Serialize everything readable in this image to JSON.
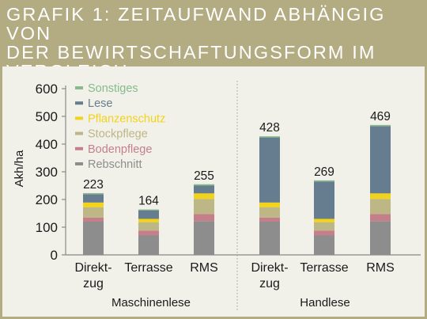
{
  "header": {
    "title_line1": "GRAFIK 1: ZEITAUFWAND ABHÄNGIG VON",
    "title_line2": "DER BEWIRTSCHAFTUNGSFORM IM",
    "title_line3": "VERGLEICH"
  },
  "colors": {
    "header_bg": "#b3ab82",
    "plot_bg": "#f1f1ea",
    "Rebschnitt": "#8d8d8d",
    "Bodenpflege": "#c57f8b",
    "Stockpflege": "#bdb685",
    "Pflanzenschutz": "#f3d21a",
    "Lese": "#667d8f",
    "Sonstiges": "#86bb8c"
  },
  "chart_data": {
    "type": "bar",
    "stacked": true,
    "title": "GRAFIK 1: ZEITAUFWAND ABHÄNGIG VON DER BEWIRTSCHAFTUNGSFORM IM VERGLEICH",
    "ylabel": "Akh/ha",
    "xlabel": "",
    "ylim": [
      0,
      600
    ],
    "yticks": [
      0,
      100,
      200,
      300,
      400,
      500,
      600
    ],
    "grid": false,
    "legend_position": "top-left",
    "groups": [
      {
        "label": "Maschinenlese",
        "categories": [
          [
            "Direkt-",
            "zug"
          ],
          [
            "Terrasse"
          ],
          [
            "RMS"
          ]
        ]
      },
      {
        "label": "Handlese",
        "categories": [
          [
            "Direkt-",
            "zug"
          ],
          [
            "Terrasse"
          ],
          [
            "RMS"
          ]
        ]
      }
    ],
    "totals": [
      223,
      164,
      255,
      428,
      269,
      469
    ],
    "series": [
      {
        "name": "Rebschnitt",
        "values": [
          120,
          70,
          122,
          120,
          70,
          122
        ]
      },
      {
        "name": "Bodenpflege",
        "values": [
          15,
          18,
          25,
          15,
          18,
          25
        ]
      },
      {
        "name": "Stockpflege",
        "values": [
          37,
          30,
          55,
          37,
          30,
          55
        ]
      },
      {
        "name": "Pflanzenschutz",
        "values": [
          17,
          12,
          20,
          17,
          12,
          20
        ]
      },
      {
        "name": "Lese",
        "values": [
          30,
          31,
          28,
          235,
          135,
          243
        ]
      },
      {
        "name": "Sonstiges",
        "values": [
          4,
          3,
          5,
          4,
          4,
          4
        ]
      }
    ],
    "legend_order": [
      "Sonstiges",
      "Lese",
      "Pflanzenschutz",
      "Stockpflege",
      "Bodenpflege",
      "Rebschnitt"
    ]
  }
}
